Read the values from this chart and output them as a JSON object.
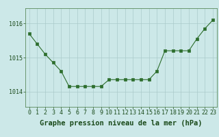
{
  "hours": [
    0,
    1,
    2,
    3,
    4,
    5,
    6,
    7,
    8,
    9,
    10,
    11,
    12,
    13,
    14,
    15,
    16,
    17,
    18,
    19,
    20,
    21,
    22,
    23
  ],
  "pressure": [
    1015.7,
    1015.4,
    1015.1,
    1014.85,
    1014.6,
    1014.15,
    1014.15,
    1014.15,
    1014.15,
    1014.15,
    1014.35,
    1014.35,
    1014.35,
    1014.35,
    1014.35,
    1014.35,
    1014.6,
    1015.2,
    1015.2,
    1015.2,
    1015.2,
    1015.55,
    1015.85,
    1016.1
  ],
  "line_color": "#2d6e2d",
  "marker_color": "#2d6e2d",
  "bg_color": "#cce8e8",
  "grid_color": "#aacaca",
  "axis_label_color": "#1a4a1a",
  "tick_label_color": "#1a4a1a",
  "title": "Graphe pression niveau de la mer (hPa)",
  "yticks": [
    1014,
    1015,
    1016
  ],
  "ylim": [
    1013.55,
    1016.45
  ],
  "xlim": [
    -0.5,
    23.5
  ],
  "title_fontsize": 7.5,
  "tick_fontsize": 6.0
}
